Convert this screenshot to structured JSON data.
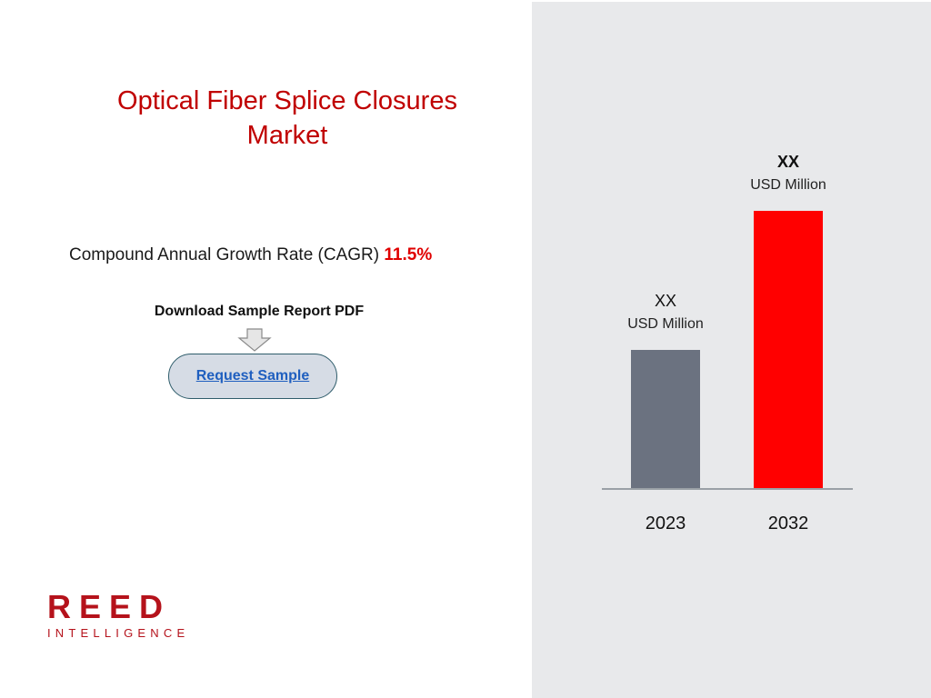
{
  "title": "Optical Fiber Splice Closures Market",
  "cagr": {
    "label": "Compound Annual Growth Rate (CAGR)",
    "value": "11.5%"
  },
  "download": {
    "label": "Download Sample Report PDF",
    "icon": "down-arrow-icon",
    "button_label": "Request Sample"
  },
  "logo": {
    "main": "REED",
    "sub": "INTELLIGENCE"
  },
  "colors": {
    "brand_red": "#c00000",
    "bar_2023": "#6b7280",
    "bar_2032": "#ff0000",
    "panel_bg": "#e8e9eb",
    "button_bg": "#d6dce5"
  },
  "chart_data": {
    "type": "bar",
    "categories": [
      "2023",
      "2032"
    ],
    "values": [
      2.0,
      4.0
    ],
    "data_labels": [
      {
        "value": "XX",
        "unit": "USD Million"
      },
      {
        "value": "XX",
        "unit": "USD Million"
      }
    ],
    "colors": [
      "#6b7280",
      "#ff0000"
    ],
    "title": "",
    "xlabel": "",
    "ylabel": "",
    "ylim": [
      0,
      4.0
    ],
    "grid": false,
    "axis_line": "bottom"
  }
}
